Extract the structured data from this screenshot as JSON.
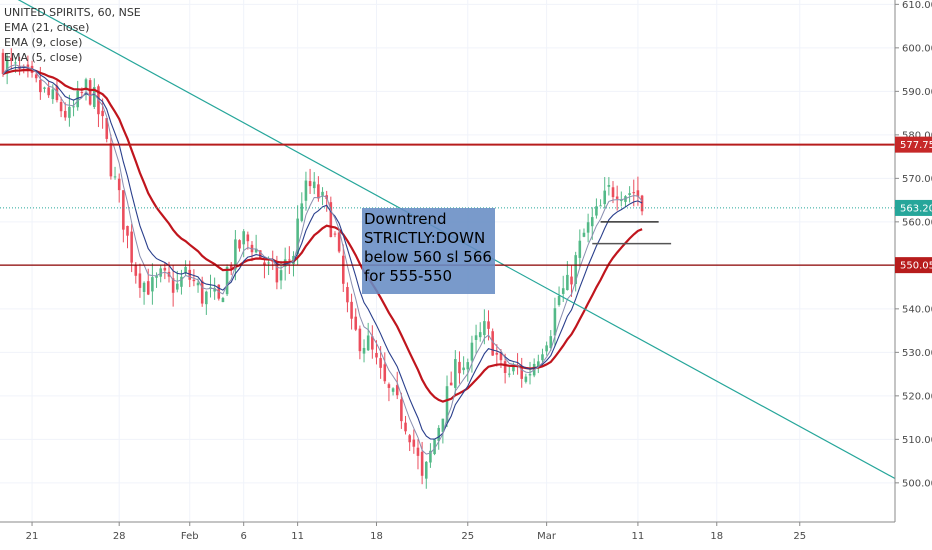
{
  "legend": {
    "symbol": "UNITED SPIRITS, 60, NSE",
    "ema21": "EMA (21, close)",
    "ema9": "EMA (9, close)",
    "ema5": "EMA (5, close)"
  },
  "annotation": {
    "line1": "Downtrend",
    "line2": "STRICTLY:DOWN",
    "line3": "below 560 sl 566",
    "line4": "for 555-550"
  },
  "colors": {
    "up": "#53b987",
    "down": "#eb4d5c",
    "ema21": "#c0151d",
    "ema9": "#2a3f8c",
    "ema5": "#8a8fb0",
    "trendline": "#26a69a",
    "resistance": "#b71c1c",
    "support": "#8b0000",
    "last_price": "#26a69a",
    "annotation_bg": "#668cc4"
  },
  "chart_data": {
    "type": "candlestick",
    "symbol": "UNITED SPIRITS",
    "interval": "60",
    "exchange": "NSE",
    "ylim": [
      491,
      611
    ],
    "y_ticks": [
      500,
      510,
      520,
      530,
      540,
      550,
      560,
      570,
      580,
      590,
      600,
      610
    ],
    "x_ticks": [
      "21",
      "28",
      "Feb",
      "6",
      "11",
      "18",
      "25",
      "Mar",
      "11",
      "18",
      "25"
    ],
    "price_labels": {
      "resistance": "577.75",
      "last": "563.20",
      "support": "550.05"
    },
    "levels": {
      "resistance": 577.75,
      "last": 563.2,
      "support": 550.05,
      "short_line_1": 560,
      "short_line_2": 555
    },
    "trendline": {
      "start": 613,
      "end": 501
    },
    "path": [
      [
        0,
        597
      ],
      [
        4,
        594
      ],
      [
        8,
        591
      ],
      [
        12,
        588
      ],
      [
        16,
        584
      ],
      [
        20,
        591
      ],
      [
        22,
        588
      ],
      [
        24,
        582
      ],
      [
        26,
        573
      ],
      [
        28,
        565
      ],
      [
        30,
        556
      ],
      [
        32,
        549
      ],
      [
        34,
        546
      ],
      [
        36,
        545
      ],
      [
        38,
        547
      ],
      [
        40,
        546
      ],
      [
        42,
        545
      ],
      [
        44,
        548
      ],
      [
        46,
        546
      ],
      [
        48,
        543
      ],
      [
        50,
        543
      ],
      [
        52,
        541
      ],
      [
        54,
        549
      ],
      [
        56,
        553
      ],
      [
        58,
        556
      ],
      [
        60,
        555
      ],
      [
        62,
        552
      ],
      [
        64,
        549
      ],
      [
        66,
        547
      ],
      [
        68,
        550
      ],
      [
        70,
        553
      ],
      [
        72,
        566
      ],
      [
        74,
        568
      ],
      [
        76,
        566
      ],
      [
        78,
        563
      ],
      [
        80,
        556
      ],
      [
        82,
        545
      ],
      [
        84,
        535
      ],
      [
        86,
        533
      ],
      [
        88,
        532
      ],
      [
        90,
        527
      ],
      [
        92,
        522
      ],
      [
        94,
        519
      ],
      [
        96,
        516
      ],
      [
        98,
        512
      ],
      [
        100,
        505
      ],
      [
        101,
        500
      ],
      [
        102,
        503
      ],
      [
        104,
        510
      ],
      [
        106,
        517
      ],
      [
        108,
        523
      ],
      [
        110,
        528
      ],
      [
        112,
        528
      ],
      [
        114,
        532
      ],
      [
        116,
        535
      ],
      [
        118,
        532
      ],
      [
        120,
        526
      ],
      [
        122,
        525
      ],
      [
        124,
        526
      ],
      [
        126,
        524
      ],
      [
        128,
        528
      ],
      [
        130,
        532
      ],
      [
        132,
        536
      ],
      [
        134,
        543
      ],
      [
        136,
        545
      ],
      [
        138,
        551
      ],
      [
        140,
        557
      ],
      [
        142,
        560
      ],
      [
        144,
        563
      ],
      [
        146,
        567
      ],
      [
        148,
        568
      ],
      [
        150,
        567
      ],
      [
        152,
        567
      ],
      [
        153,
        566
      ],
      [
        154,
        563
      ]
    ]
  }
}
